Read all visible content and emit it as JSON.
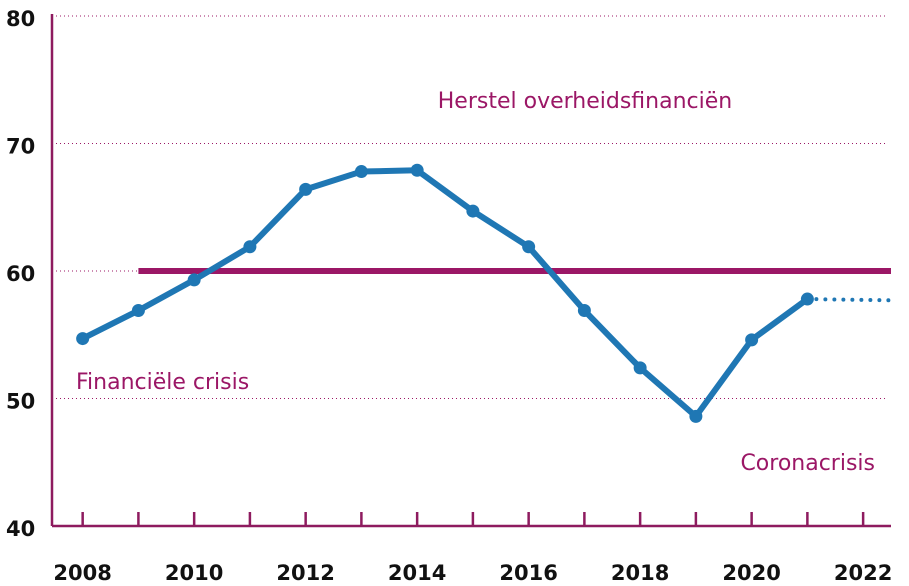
{
  "chart_data": {
    "type": "line",
    "series": [
      {
        "color": "#1f77b4",
        "style": "solid",
        "x": [
          2008,
          2009,
          2010,
          2011,
          2012,
          2013,
          2014,
          2015,
          2016,
          2017,
          2018,
          2019,
          2020,
          2021
        ],
        "values": [
          54.7,
          56.9,
          59.3,
          61.9,
          66.4,
          67.8,
          67.9,
          64.7,
          61.9,
          56.9,
          52.4,
          48.6,
          54.6,
          57.8
        ]
      },
      {
        "color": "#1f77b4",
        "style": "dotted",
        "x": [
          2021,
          2022.5
        ],
        "values": [
          57.8,
          57.7
        ]
      }
    ],
    "reference_line": {
      "value": 60,
      "x": [
        2009,
        2022.5
      ],
      "color": "#9b1766"
    },
    "annotations": [
      "Herstel overheidsfinanciën",
      "Financiële crisis",
      "Coronacrisis"
    ],
    "annotation_color": "#9b1766",
    "axis_color": "#8e1b5f",
    "xlim": [
      2007.45,
      2022.5
    ],
    "xticks": [
      2008,
      2010,
      2012,
      2014,
      2016,
      2018,
      2020,
      2022
    ],
    "xminorticks": [
      2009,
      2011,
      2013,
      2015,
      2017,
      2019,
      2021
    ],
    "ylim": [
      40,
      80
    ],
    "yticks": [
      40,
      50,
      60,
      70,
      80
    ],
    "grid": true
  }
}
